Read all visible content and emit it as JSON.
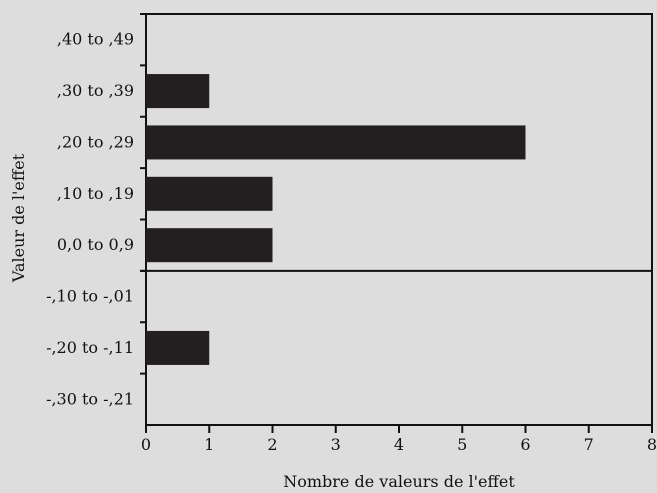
{
  "chart_data": {
    "type": "bar",
    "orientation": "horizontal",
    "title": "",
    "xlabel": "Nombre de valeurs de l'effet",
    "ylabel": "Valeur de l'effet",
    "xlim": [
      0,
      8
    ],
    "x_ticks": [
      "0",
      "1",
      "2",
      "3",
      "4",
      "5",
      "6",
      "7",
      "8"
    ],
    "categories": [
      ",40 to ,49",
      ",30 to ,39",
      ",20 to ,29",
      ",10 to ,19",
      "0,0 to 0,9",
      "-,10 to -,01",
      "-,20 to -,11",
      "-,30 to -,21"
    ],
    "values": [
      0,
      1,
      6,
      2,
      2,
      0,
      1,
      0
    ],
    "divider_between": [
      "0,0 to 0,9",
      "-,10 to -,01"
    ],
    "grid": false,
    "legend": "none",
    "colors": {
      "background": "#dddddd",
      "bar": "#231f20",
      "axis": "#111111"
    }
  }
}
